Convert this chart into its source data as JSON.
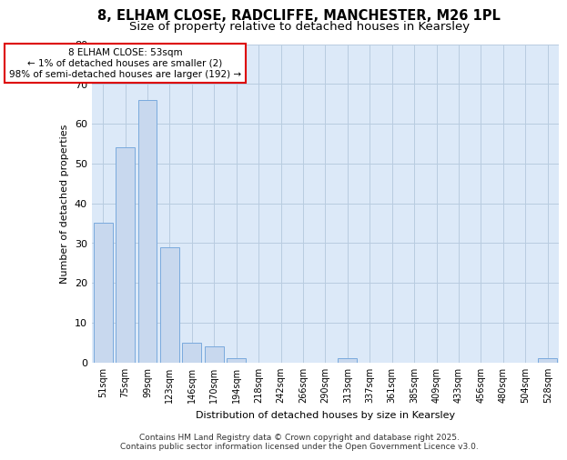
{
  "title_line1": "8, ELHAM CLOSE, RADCLIFFE, MANCHESTER, M26 1PL",
  "title_line2": "Size of property relative to detached houses in Kearsley",
  "xlabel": "Distribution of detached houses by size in Kearsley",
  "ylabel": "Number of detached properties",
  "categories": [
    "51sqm",
    "75sqm",
    "99sqm",
    "123sqm",
    "146sqm",
    "170sqm",
    "194sqm",
    "218sqm",
    "242sqm",
    "266sqm",
    "290sqm",
    "313sqm",
    "337sqm",
    "361sqm",
    "385sqm",
    "409sqm",
    "433sqm",
    "456sqm",
    "480sqm",
    "504sqm",
    "528sqm"
  ],
  "values": [
    35,
    54,
    66,
    29,
    5,
    4,
    1,
    0,
    0,
    0,
    0,
    1,
    0,
    0,
    0,
    0,
    0,
    0,
    0,
    0,
    1
  ],
  "bar_color": "#c8d8ee",
  "bar_edge_color": "#7aaadd",
  "annotation_text": "8 ELHAM CLOSE: 53sqm\n← 1% of detached houses are smaller (2)\n98% of semi-detached houses are larger (192) →",
  "annotation_box_color": "#ffffff",
  "annotation_box_edge_color": "#dd0000",
  "ylim": [
    0,
    80
  ],
  "yticks": [
    0,
    10,
    20,
    30,
    40,
    50,
    60,
    70,
    80
  ],
  "grid_color": "#b8cce0",
  "plot_bg_color": "#dce9f8",
  "fig_bg_color": "#ffffff",
  "footer_text": "Contains HM Land Registry data © Crown copyright and database right 2025.\nContains public sector information licensed under the Open Government Licence v3.0.",
  "title_fontsize": 10.5,
  "subtitle_fontsize": 9.5,
  "ylabel_fontsize": 8,
  "xlabel_fontsize": 8,
  "tick_fontsize": 7,
  "annotation_fontsize": 7.5,
  "footer_fontsize": 6.5
}
